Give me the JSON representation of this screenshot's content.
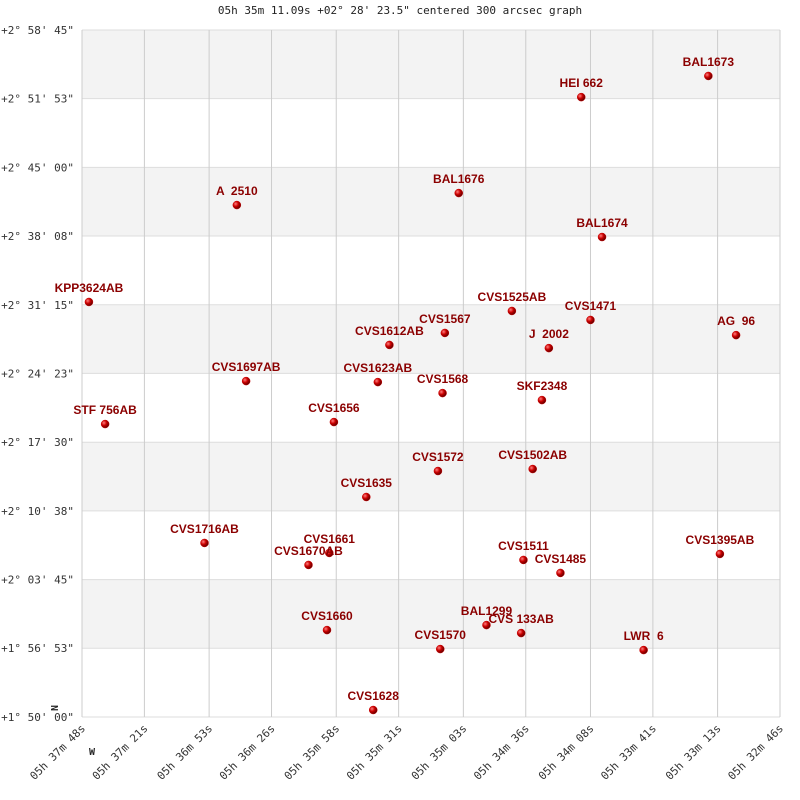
{
  "chart_data": {
    "type": "scatter",
    "title": "05h 35m 11.09s +02° 28' 23.5\" centered 300 arcsec graph",
    "annotations": [
      "N",
      "W"
    ],
    "color": "#cc0000",
    "label_color": "#8b0000",
    "grid": true,
    "xlim": [
      20268,
      19966
    ],
    "ylim": [
      6600,
      10725
    ],
    "xticks": [
      {
        "value": 20268,
        "label": "05h 37m 48s"
      },
      {
        "value": 20241,
        "label": "05h 37m 21s"
      },
      {
        "value": 20213,
        "label": "05h 36m 53s"
      },
      {
        "value": 20186,
        "label": "05h 36m 26s"
      },
      {
        "value": 20158,
        "label": "05h 35m 58s"
      },
      {
        "value": 20131,
        "label": "05h 35m 31s"
      },
      {
        "value": 20103,
        "label": "05h 35m 03s"
      },
      {
        "value": 20076,
        "label": "05h 34m 36s"
      },
      {
        "value": 20048,
        "label": "05h 34m 08s"
      },
      {
        "value": 20021,
        "label": "05h 33m 41s"
      },
      {
        "value": 19993,
        "label": "05h 33m 13s"
      },
      {
        "value": 19966,
        "label": "05h 32m 46s"
      }
    ],
    "yticks": [
      {
        "value": 10725,
        "label": "+2° 58' 45\""
      },
      {
        "value": 10313,
        "label": "+2° 51' 53\""
      },
      {
        "value": 9900,
        "label": "+2° 45' 00\""
      },
      {
        "value": 9488,
        "label": "+2° 38' 08\""
      },
      {
        "value": 9075,
        "label": "+2° 31' 15\""
      },
      {
        "value": 8663,
        "label": "+2° 24' 23\""
      },
      {
        "value": 8250,
        "label": "+2° 17' 30\""
      },
      {
        "value": 7838,
        "label": "+2° 10' 38\""
      },
      {
        "value": 7425,
        "label": "+2° 03' 45\""
      },
      {
        "value": 7013,
        "label": "+1° 56' 53\""
      },
      {
        "value": 6600,
        "label": "+1° 50' 00\""
      }
    ],
    "labels": [
      "BAL1673",
      "HEI 662",
      "BAL1676",
      "A  2510",
      "BAL1674",
      "KPP3624AB",
      "CVS1525AB",
      "CVS1471",
      "CVS1567",
      "AG  96",
      "CVS1612AB",
      "J  2002",
      "CVS1697AB",
      "CVS1623AB",
      "CVS1568",
      "SKF2348",
      "STF 756AB",
      "CVS1656",
      "CVS1572",
      "CVS1502AB",
      "CVS1635",
      "CVS1716AB",
      "CVS1661",
      "CVS1670AB",
      "CVS1395AB",
      "CVS1511",
      "CVS1485",
      "BAL1299",
      "CVS 133AB",
      "CVS1660",
      "CVS1570",
      "LWR  6",
      "CVS1628"
    ],
    "x": [
      19997,
      20052,
      20105,
      20201,
      20043,
      20265,
      20082,
      20048,
      20111,
      19985,
      20135,
      20066,
      20197,
      20140,
      20112,
      20069,
      20258,
      20159,
      20114,
      20073,
      20145,
      20215,
      20161,
      20170,
      19992,
      20077,
      20061,
      20093,
      20078,
      20162,
      20113,
      20025,
      20142
    ],
    "y": [
      10449,
      10322,
      9746,
      9674,
      9482,
      9092,
      9038,
      8984,
      8906,
      8893,
      8834,
      8815,
      8617,
      8611,
      8545,
      8503,
      8359,
      8371,
      8077,
      8089,
      7921,
      7645,
      7585,
      7513,
      7579,
      7543,
      7465,
      7152,
      7104,
      7122,
      7008,
      7002,
      6642
    ]
  }
}
